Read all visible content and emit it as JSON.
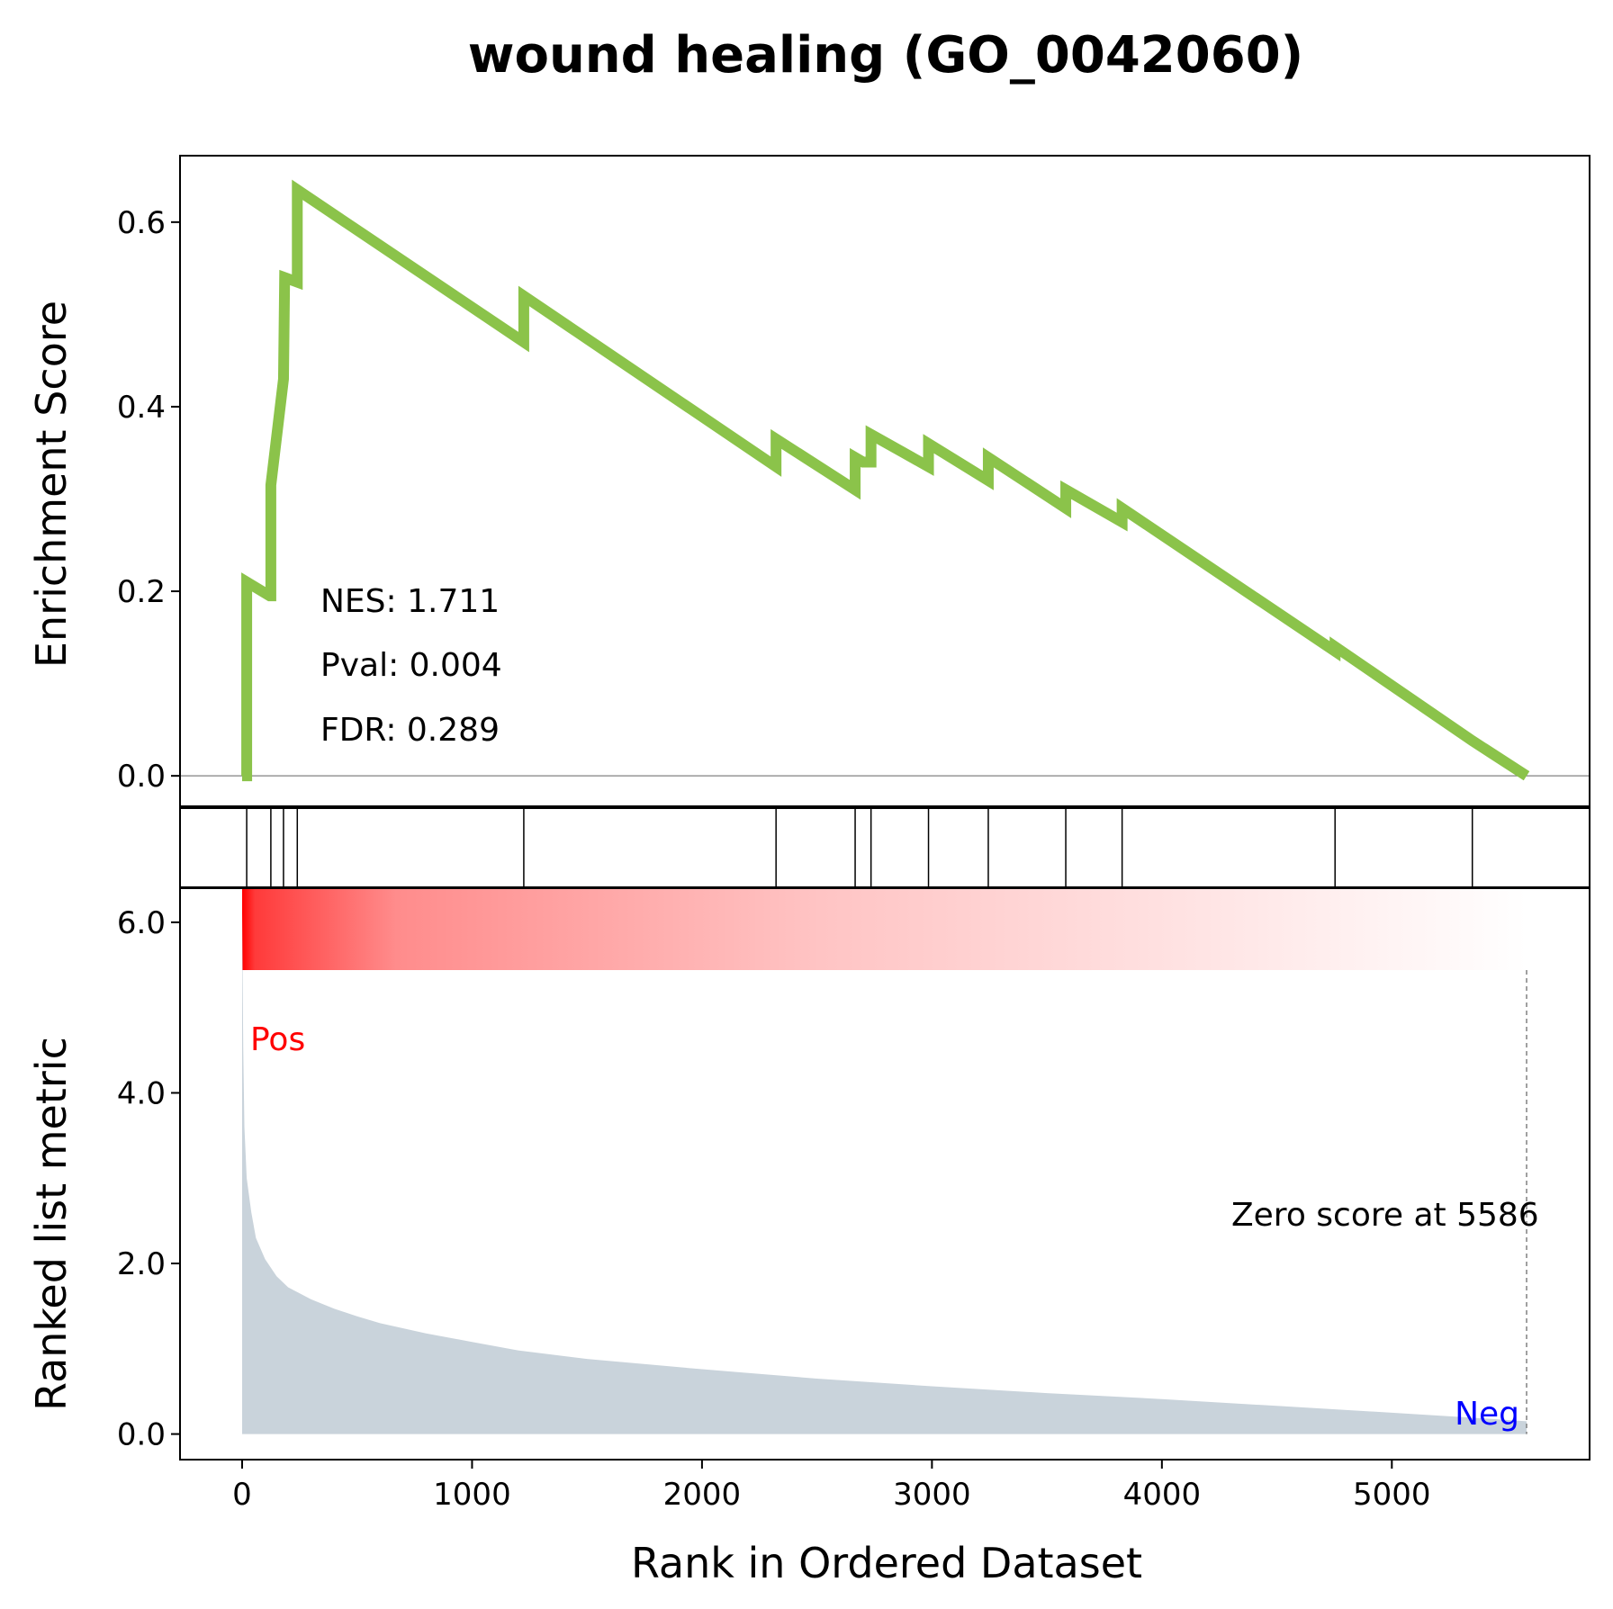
{
  "chart_data": {
    "type": "line",
    "title": "wound healing (GO_0042060)",
    "xlabel": "Rank in Ordered Dataset",
    "es_ylabel": "Enrichment Score",
    "metric_ylabel": "Ranked list metric",
    "xlim": [
      -270,
      5860
    ],
    "es_ylim": [
      -0.033,
      0.672
    ],
    "metric_ylim": [
      -0.3,
      6.4
    ],
    "x_ticks": [
      0,
      1000,
      2000,
      3000,
      4000,
      5000
    ],
    "x_tick_labels": [
      "0",
      "1000",
      "2000",
      "3000",
      "4000",
      "5000"
    ],
    "es_ticks": [
      0.0,
      0.2,
      0.4,
      0.6
    ],
    "es_tick_labels": [
      "0.0",
      "0.2",
      "0.4",
      "0.6"
    ],
    "metric_ticks": [
      0.0,
      2.0,
      4.0,
      6.0
    ],
    "metric_tick_labels": [
      "0.0",
      "2.0",
      "4.0",
      "6.0"
    ],
    "stats": {
      "nes": "NES: 1.711",
      "pval": "Pval: 0.004",
      "fdr": "FDR: 0.289"
    },
    "pos_label": "Pos",
    "neg_label": "Neg",
    "zero_score_label": "Zero score at 5586",
    "zero_score_rank": 5586,
    "hit_ranks": [
      20,
      125,
      180,
      240,
      1225,
      2322,
      2666,
      2735,
      2985,
      3245,
      3582,
      3827,
      4753,
      5350
    ],
    "es_curve": {
      "x": [
        0,
        20,
        20,
        120,
        125,
        125,
        180,
        180,
        185,
        240,
        240,
        1225,
        1225,
        2322,
        2322,
        2666,
        2666,
        2700,
        2735,
        2735,
        2985,
        2985,
        3245,
        3245,
        3582,
        3582,
        3827,
        3827,
        4753,
        4753,
        5350,
        5350,
        5586
      ],
      "y": [
        0.0,
        0.0,
        0.21,
        0.195,
        0.195,
        0.315,
        0.43,
        0.43,
        0.54,
        0.535,
        0.635,
        0.47,
        0.52,
        0.335,
        0.365,
        0.31,
        0.345,
        0.34,
        0.34,
        0.37,
        0.335,
        0.36,
        0.32,
        0.345,
        0.29,
        0.31,
        0.275,
        0.29,
        0.135,
        0.14,
        0.038,
        0.038,
        0.0
      ]
    },
    "metric_curve": {
      "x": [
        0,
        5,
        10,
        20,
        40,
        60,
        100,
        150,
        200,
        300,
        400,
        500,
        600,
        800,
        1000,
        1200,
        1500,
        2000,
        2500,
        3000,
        3500,
        4000,
        4500,
        5000,
        5300,
        5586
      ],
      "y": [
        6.15,
        4.5,
        3.6,
        3.0,
        2.6,
        2.3,
        2.05,
        1.85,
        1.72,
        1.58,
        1.47,
        1.38,
        1.3,
        1.18,
        1.08,
        0.98,
        0.88,
        0.76,
        0.65,
        0.56,
        0.48,
        0.41,
        0.33,
        0.25,
        0.2,
        0.15
      ]
    },
    "grid": false,
    "legend": "none",
    "colors": {
      "es_line": "#8bc34a",
      "metric_fill": "#c9d3db",
      "heat_start": "#ff0000",
      "heat_end": "#ffffff",
      "pos_text": "#ff0000",
      "neg_text": "#0000ff",
      "hit_line": "#000000",
      "zero_line": "#808080"
    }
  }
}
